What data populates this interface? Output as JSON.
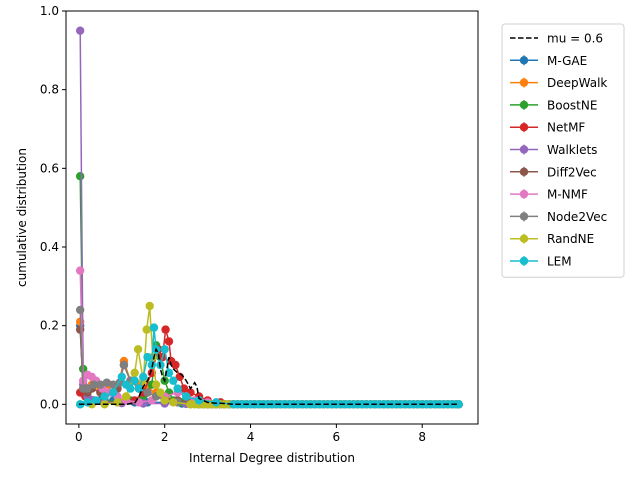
{
  "chart_data": {
    "type": "line",
    "xlabel": "Internal Degree distribution",
    "ylabel": "cumulative distribution",
    "xlim": [
      -0.3,
      9.3
    ],
    "ylim": [
      -0.05,
      1.0
    ],
    "xticks": [
      0,
      2,
      4,
      6,
      8
    ],
    "yticks": [
      0.0,
      0.2,
      0.4,
      0.6,
      0.8,
      1.0
    ],
    "xtick_labels": [
      "0",
      "2",
      "4",
      "6",
      "8"
    ],
    "ytick_labels": [
      "0.0",
      "0.2",
      "0.4",
      "0.6",
      "0.8",
      "1.0"
    ],
    "grid": false,
    "legend_position": "outside-right",
    "reference": {
      "name": "mu = 0.6",
      "color": "#000000",
      "points": [
        [
          0,
          0
        ],
        [
          1.1,
          0
        ],
        [
          1.3,
          0.003
        ],
        [
          1.4,
          0.02
        ],
        [
          1.5,
          0.045
        ],
        [
          1.6,
          0.06
        ],
        [
          1.7,
          0.09
        ],
        [
          1.75,
          0.12
        ],
        [
          1.8,
          0.14
        ],
        [
          1.85,
          0.13
        ],
        [
          1.9,
          0.09
        ],
        [
          1.95,
          0.07
        ],
        [
          2.0,
          0.06
        ],
        [
          2.05,
          0.09
        ],
        [
          2.1,
          0.12
        ],
        [
          2.15,
          0.1
        ],
        [
          2.2,
          0.09
        ],
        [
          2.3,
          0.08
        ],
        [
          2.4,
          0.075
        ],
        [
          2.5,
          0.06
        ],
        [
          2.6,
          0.04
        ],
        [
          2.7,
          0.055
        ],
        [
          2.75,
          0.045
        ],
        [
          2.8,
          0.015
        ],
        [
          3.0,
          0.005
        ],
        [
          3.2,
          0.003
        ],
        [
          3.4,
          0.002
        ],
        [
          3.6,
          0
        ],
        [
          8.85,
          0
        ]
      ]
    },
    "series": [
      {
        "name": "M-GAE",
        "color": "#1f77b4",
        "points": [
          [
            0.03,
            0.2
          ],
          [
            0.1,
            0.03
          ],
          [
            0.2,
            0.02
          ],
          [
            0.3,
            0.01
          ],
          [
            0.5,
            0.01
          ],
          [
            0.8,
            0.01
          ],
          [
            1.0,
            0.005
          ],
          [
            1.3,
            0.005
          ],
          [
            1.6,
            0.005
          ],
          [
            2.0,
            0.005
          ],
          [
            2.4,
            0.002
          ],
          [
            3.0,
            0
          ],
          [
            8.85,
            0
          ]
        ]
      },
      {
        "name": "DeepWalk",
        "color": "#ff7f0e",
        "points": [
          [
            0.03,
            0.21
          ],
          [
            0.1,
            0.04
          ],
          [
            0.2,
            0.03
          ],
          [
            0.3,
            0.05
          ],
          [
            0.5,
            0.04
          ],
          [
            0.7,
            0.05
          ],
          [
            0.9,
            0.04
          ],
          [
            1.05,
            0.11
          ],
          [
            1.2,
            0.06
          ],
          [
            1.4,
            0.05
          ],
          [
            1.6,
            0.04
          ],
          [
            1.8,
            0.03
          ],
          [
            2.0,
            0.02
          ],
          [
            2.3,
            0.01
          ],
          [
            2.6,
            0.005
          ],
          [
            3.0,
            0
          ],
          [
            8.85,
            0
          ]
        ]
      },
      {
        "name": "BoostNE",
        "color": "#2ca02c",
        "points": [
          [
            0.03,
            0.58
          ],
          [
            0.1,
            0.09
          ],
          [
            0.2,
            0.02
          ],
          [
            0.35,
            0.01
          ],
          [
            0.6,
            0.01
          ],
          [
            0.9,
            0.005
          ],
          [
            1.2,
            0.01
          ],
          [
            1.5,
            0.02
          ],
          [
            1.7,
            0.05
          ],
          [
            1.8,
            0.15
          ],
          [
            1.9,
            0.12
          ],
          [
            2.0,
            0.06
          ],
          [
            2.1,
            0.03
          ],
          [
            2.2,
            0.01
          ],
          [
            2.4,
            0.005
          ],
          [
            2.8,
            0
          ],
          [
            8.85,
            0
          ]
        ]
      },
      {
        "name": "NetMF",
        "color": "#d62728",
        "points": [
          [
            0.03,
            0.03
          ],
          [
            0.15,
            0.02
          ],
          [
            0.3,
            0.01
          ],
          [
            0.6,
            0.005
          ],
          [
            1.0,
            0.005
          ],
          [
            1.3,
            0.01
          ],
          [
            1.5,
            0.03
          ],
          [
            1.7,
            0.08
          ],
          [
            1.85,
            0.14
          ],
          [
            1.95,
            0.12
          ],
          [
            2.02,
            0.19
          ],
          [
            2.1,
            0.16
          ],
          [
            2.15,
            0.11
          ],
          [
            2.25,
            0.1
          ],
          [
            2.35,
            0.07
          ],
          [
            2.45,
            0.04
          ],
          [
            2.6,
            0.03
          ],
          [
            2.8,
            0.02
          ],
          [
            3.0,
            0.01
          ],
          [
            3.3,
            0.005
          ],
          [
            3.8,
            0
          ],
          [
            8.85,
            0
          ]
        ]
      },
      {
        "name": "Walklets",
        "color": "#9467bd",
        "points": [
          [
            0.03,
            0.95
          ],
          [
            0.1,
            0.05
          ],
          [
            0.2,
            0.02
          ],
          [
            0.35,
            0.01
          ],
          [
            0.6,
            0.005
          ],
          [
            1.0,
            0.003
          ],
          [
            1.5,
            0.002
          ],
          [
            2.0,
            0.002
          ],
          [
            2.5,
            0.001
          ],
          [
            3.0,
            0
          ],
          [
            8.85,
            0
          ]
        ]
      },
      {
        "name": "Diff2Vec",
        "color": "#8c564b",
        "points": [
          [
            0.03,
            0.19
          ],
          [
            0.1,
            0.04
          ],
          [
            0.2,
            0.03
          ],
          [
            0.3,
            0.04
          ],
          [
            0.5,
            0.03
          ],
          [
            0.7,
            0.03
          ],
          [
            0.9,
            0.04
          ],
          [
            1.05,
            0.1
          ],
          [
            1.2,
            0.06
          ],
          [
            1.4,
            0.04
          ],
          [
            1.6,
            0.03
          ],
          [
            1.8,
            0.02
          ],
          [
            2.0,
            0.015
          ],
          [
            2.3,
            0.01
          ],
          [
            2.6,
            0.005
          ],
          [
            3.0,
            0
          ],
          [
            8.85,
            0
          ]
        ]
      },
      {
        "name": "M-NMF",
        "color": "#e377c2",
        "points": [
          [
            0.03,
            0.34
          ],
          [
            0.1,
            0.06
          ],
          [
            0.2,
            0.075
          ],
          [
            0.3,
            0.07
          ],
          [
            0.4,
            0.06
          ],
          [
            0.55,
            0.04
          ],
          [
            0.7,
            0.03
          ],
          [
            0.9,
            0.02
          ],
          [
            1.1,
            0.01
          ],
          [
            1.4,
            0.005
          ],
          [
            1.7,
            0.01
          ],
          [
            2.0,
            0.02
          ],
          [
            2.3,
            0.03
          ],
          [
            2.5,
            0.02
          ],
          [
            2.7,
            0.01
          ],
          [
            3.0,
            0.005
          ],
          [
            3.5,
            0
          ],
          [
            8.85,
            0
          ]
        ]
      },
      {
        "name": "Node2Vec",
        "color": "#7f7f7f",
        "points": [
          [
            0.03,
            0.24
          ],
          [
            0.1,
            0.04
          ],
          [
            0.2,
            0.04
          ],
          [
            0.35,
            0.05
          ],
          [
            0.5,
            0.05
          ],
          [
            0.65,
            0.055
          ],
          [
            0.8,
            0.05
          ],
          [
            0.95,
            0.055
          ],
          [
            1.05,
            0.1
          ],
          [
            1.2,
            0.06
          ],
          [
            1.4,
            0.04
          ],
          [
            1.6,
            0.03
          ],
          [
            1.8,
            0.02
          ],
          [
            2.0,
            0.01
          ],
          [
            2.3,
            0.005
          ],
          [
            2.8,
            0
          ],
          [
            8.85,
            0
          ]
        ]
      },
      {
        "name": "RandNE",
        "color": "#bcbd22",
        "points": [
          [
            0.03,
            0.0
          ],
          [
            0.3,
            0.0
          ],
          [
            0.6,
            0.0
          ],
          [
            0.9,
            0.005
          ],
          [
            1.1,
            0.02
          ],
          [
            1.3,
            0.08
          ],
          [
            1.38,
            0.14
          ],
          [
            1.5,
            0.06
          ],
          [
            1.58,
            0.19
          ],
          [
            1.65,
            0.25
          ],
          [
            1.72,
            0.12
          ],
          [
            1.8,
            0.05
          ],
          [
            1.9,
            0.03
          ],
          [
            2.0,
            0.01
          ],
          [
            2.2,
            0.005
          ],
          [
            2.6,
            0
          ],
          [
            8.85,
            0
          ]
        ]
      },
      {
        "name": "LEM",
        "color": "#17becf",
        "points": [
          [
            0.03,
            0.0
          ],
          [
            0.2,
            0.005
          ],
          [
            0.4,
            0.01
          ],
          [
            0.6,
            0.02
          ],
          [
            0.8,
            0.03
          ],
          [
            1.0,
            0.07
          ],
          [
            1.1,
            0.05
          ],
          [
            1.2,
            0.04
          ],
          [
            1.3,
            0.06
          ],
          [
            1.4,
            0.04
          ],
          [
            1.5,
            0.07
          ],
          [
            1.6,
            0.12
          ],
          [
            1.7,
            0.1
          ],
          [
            1.75,
            0.195
          ],
          [
            1.8,
            0.14
          ],
          [
            1.9,
            0.1
          ],
          [
            2.0,
            0.14
          ],
          [
            2.1,
            0.08
          ],
          [
            2.2,
            0.06
          ],
          [
            2.3,
            0.04
          ],
          [
            2.5,
            0.02
          ],
          [
            2.8,
            0.01
          ],
          [
            3.2,
            0.005
          ],
          [
            3.6,
            0
          ],
          [
            8.85,
            0
          ]
        ]
      }
    ]
  }
}
